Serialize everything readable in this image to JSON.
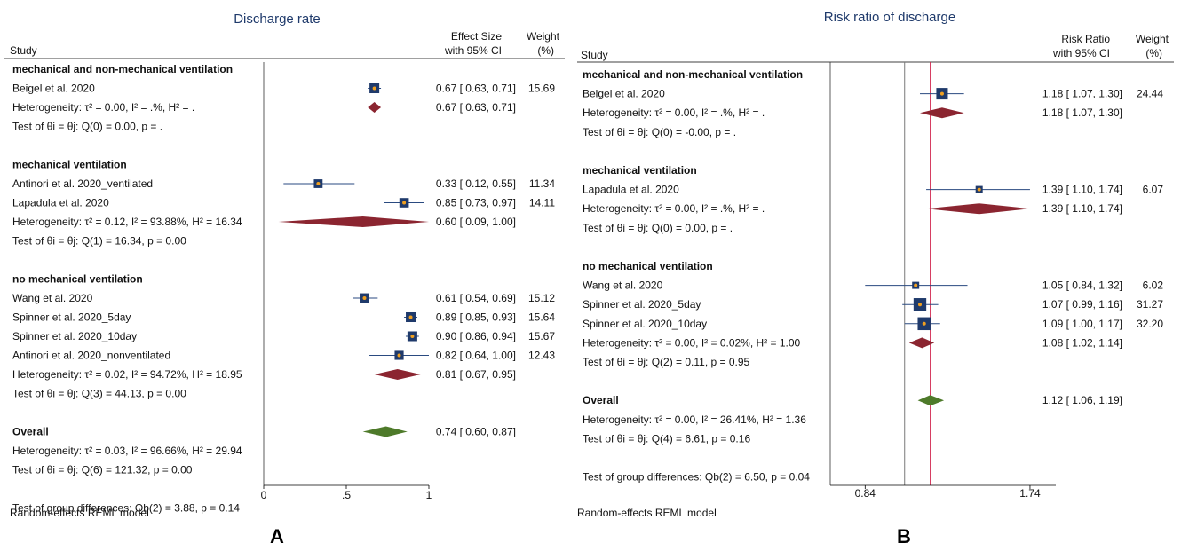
{
  "chart_data": [
    {
      "type": "forest",
      "title": "Discharge rate",
      "columns": {
        "study": "Study",
        "effect": [
          "Effect Size",
          "with 95% CI"
        ],
        "weight": [
          "Weight",
          "(%)"
        ]
      },
      "xlim": [
        0,
        1
      ],
      "xticks": [
        {
          "v": 0,
          "label": "0"
        },
        {
          "v": 0.5,
          "label": ".5"
        },
        {
          "v": 1,
          "label": "1"
        }
      ],
      "ref_line": null,
      "rows": [
        {
          "kind": "group",
          "label": "mechanical and non-mechanical ventilation"
        },
        {
          "kind": "study",
          "label": "Beigel et al. 2020",
          "est": 0.67,
          "lo": 0.63,
          "hi": 0.71,
          "ci_text": "0.67 [ 0.63, 0.71]",
          "weight": "15.69",
          "w": 15.69
        },
        {
          "kind": "het",
          "label": "Heterogeneity: τ² = 0.00, I² = .%, H² = .",
          "est": 0.67,
          "lo": 0.63,
          "hi": 0.71,
          "ci_text": "0.67 [ 0.63, 0.71]"
        },
        {
          "kind": "text",
          "label": "Test of θi = θj: Q(0) = 0.00, p = ."
        },
        {
          "kind": "blank"
        },
        {
          "kind": "group",
          "label": "mechanical ventilation"
        },
        {
          "kind": "study",
          "label": "Antinori et al. 2020_ventilated",
          "est": 0.33,
          "lo": 0.12,
          "hi": 0.55,
          "ci_text": "0.33 [ 0.12, 0.55]",
          "weight": "11.34",
          "w": 11.34
        },
        {
          "kind": "study",
          "label": "Lapadula et al. 2020",
          "est": 0.85,
          "lo": 0.73,
          "hi": 0.97,
          "ci_text": "0.85 [ 0.73, 0.97]",
          "weight": "14.11",
          "w": 14.11
        },
        {
          "kind": "het",
          "label": "Heterogeneity: τ² = 0.12, I² = 93.88%, H² = 16.34",
          "est": 0.6,
          "lo": 0.09,
          "hi": 1.0,
          "ci_text": "0.60 [ 0.09, 1.00]"
        },
        {
          "kind": "text",
          "label": "Test of θi = θj: Q(1) = 16.34, p = 0.00"
        },
        {
          "kind": "blank"
        },
        {
          "kind": "group",
          "label": "no mechanical ventilation"
        },
        {
          "kind": "study",
          "label": "Wang et al. 2020",
          "est": 0.61,
          "lo": 0.54,
          "hi": 0.69,
          "ci_text": "0.61 [ 0.54, 0.69]",
          "weight": "15.12",
          "w": 15.12
        },
        {
          "kind": "study",
          "label": "Spinner et al. 2020_5day",
          "est": 0.89,
          "lo": 0.85,
          "hi": 0.93,
          "ci_text": "0.89 [ 0.85, 0.93]",
          "weight": "15.64",
          "w": 15.64
        },
        {
          "kind": "study",
          "label": "Spinner et al. 2020_10day",
          "est": 0.9,
          "lo": 0.86,
          "hi": 0.94,
          "ci_text": "0.90 [ 0.86, 0.94]",
          "weight": "15.67",
          "w": 15.67
        },
        {
          "kind": "study",
          "label": "Antinori et al. 2020_nonventilated",
          "est": 0.82,
          "lo": 0.64,
          "hi": 1.0,
          "ci_text": "0.82 [ 0.64, 1.00]",
          "weight": "12.43",
          "w": 12.43
        },
        {
          "kind": "het",
          "label": "Heterogeneity: τ² = 0.02, I² = 94.72%, H² = 18.95",
          "est": 0.81,
          "lo": 0.67,
          "hi": 0.95,
          "ci_text": "0.81 [ 0.67, 0.95]"
        },
        {
          "kind": "text",
          "label": "Test of θi = θj: Q(3) = 44.13, p = 0.00"
        },
        {
          "kind": "blank"
        },
        {
          "kind": "overall",
          "label": "Overall",
          "est": 0.74,
          "lo": 0.6,
          "hi": 0.87,
          "ci_text": "0.74 [ 0.60, 0.87]"
        },
        {
          "kind": "text",
          "label": "Heterogeneity: τ² = 0.03, I² = 96.66%, H² = 29.94"
        },
        {
          "kind": "text",
          "label": "Test of θi = θj: Q(6) = 121.32, p = 0.00"
        },
        {
          "kind": "blank"
        },
        {
          "kind": "text",
          "label": "Test of group differences: Qb(2) = 3.88, p = 0.14"
        }
      ],
      "footer": "Random-effects REML model",
      "panel_label": "A"
    },
    {
      "type": "forest",
      "title": "Risk ratio of discharge",
      "columns": {
        "study": "Study",
        "effect": [
          "Risk Ratio",
          "with 95% CI"
        ],
        "weight": [
          "Weight",
          "(%)"
        ]
      },
      "xlim": [
        0.72,
        1.95
      ],
      "scale": "log",
      "xticks": [
        {
          "v": 0.84,
          "label": "0.84"
        },
        {
          "v": 1.74,
          "label": "1.74"
        }
      ],
      "ref_line": 1.0,
      "overall_line": 1.12,
      "rows": [
        {
          "kind": "group",
          "label": "mechanical and non-mechanical ventilation"
        },
        {
          "kind": "study",
          "label": "Beigel et al. 2020",
          "est": 1.18,
          "lo": 1.07,
          "hi": 1.3,
          "ci_text": "1.18 [ 1.07, 1.30]",
          "weight": "24.44",
          "w": 24.44
        },
        {
          "kind": "het",
          "label": "Heterogeneity: τ² = 0.00, I² = .%, H² = .",
          "est": 1.18,
          "lo": 1.07,
          "hi": 1.3,
          "ci_text": "1.18 [ 1.07, 1.30]"
        },
        {
          "kind": "text",
          "label": "Test of θi = θj: Q(0) = -0.00, p = ."
        },
        {
          "kind": "blank"
        },
        {
          "kind": "group",
          "label": "mechanical ventilation"
        },
        {
          "kind": "study",
          "label": "Lapadula et al. 2020",
          "est": 1.39,
          "lo": 1.1,
          "hi": 1.74,
          "ci_text": "1.39 [ 1.10, 1.74]",
          "weight": "6.07",
          "w": 6.07
        },
        {
          "kind": "het",
          "label": "Heterogeneity: τ² = 0.00, I² = .%, H² = .",
          "est": 1.39,
          "lo": 1.1,
          "hi": 1.74,
          "ci_text": "1.39 [ 1.10, 1.74]"
        },
        {
          "kind": "text",
          "label": "Test of θi = θj: Q(0) = 0.00, p = ."
        },
        {
          "kind": "blank"
        },
        {
          "kind": "group",
          "label": "no mechanical ventilation"
        },
        {
          "kind": "study",
          "label": "Wang et al. 2020",
          "est": 1.05,
          "lo": 0.84,
          "hi": 1.32,
          "ci_text": "1.05 [ 0.84, 1.32]",
          "weight": "6.02",
          "w": 6.02
        },
        {
          "kind": "study",
          "label": "Spinner et al. 2020_5day",
          "est": 1.07,
          "lo": 0.99,
          "hi": 1.16,
          "ci_text": "1.07 [ 0.99, 1.16]",
          "weight": "31.27",
          "w": 31.27
        },
        {
          "kind": "study",
          "label": "Spinner et al. 2020_10day",
          "est": 1.09,
          "lo": 1.0,
          "hi": 1.17,
          "ci_text": "1.09 [ 1.00, 1.17]",
          "weight": "32.20",
          "w": 32.2
        },
        {
          "kind": "het",
          "label": "Heterogeneity: τ² = 0.00, I² = 0.02%, H² = 1.00",
          "est": 1.08,
          "lo": 1.02,
          "hi": 1.14,
          "ci_text": "1.08 [ 1.02, 1.14]"
        },
        {
          "kind": "text",
          "label": "Test of θi = θj: Q(2) = 0.11, p = 0.95"
        },
        {
          "kind": "blank"
        },
        {
          "kind": "overall",
          "label": "Overall",
          "est": 1.12,
          "lo": 1.06,
          "hi": 1.19,
          "ci_text": "1.12 [ 1.06, 1.19]"
        },
        {
          "kind": "text",
          "label": "Heterogeneity: τ² = 0.00, I² = 26.41%, H² = 1.36"
        },
        {
          "kind": "text",
          "label": "Test of θi = θj: Q(4) = 6.61, p = 0.16"
        },
        {
          "kind": "blank"
        },
        {
          "kind": "text",
          "label": "Test of group differences: Qb(2) = 6.50, p = 0.04"
        }
      ],
      "footer": "Random-effects REML model",
      "panel_label": "B"
    }
  ],
  "colors": {
    "box": "#1f3a6b",
    "dot": "#f0a020",
    "ci": "#2a4a80",
    "subgroup_diamond": "#8b2530",
    "overall_diamond": "#4e7a2a",
    "ref_line": "#7a7a7a",
    "overall_line": "#d0204a",
    "title": "#1f3a6b"
  }
}
